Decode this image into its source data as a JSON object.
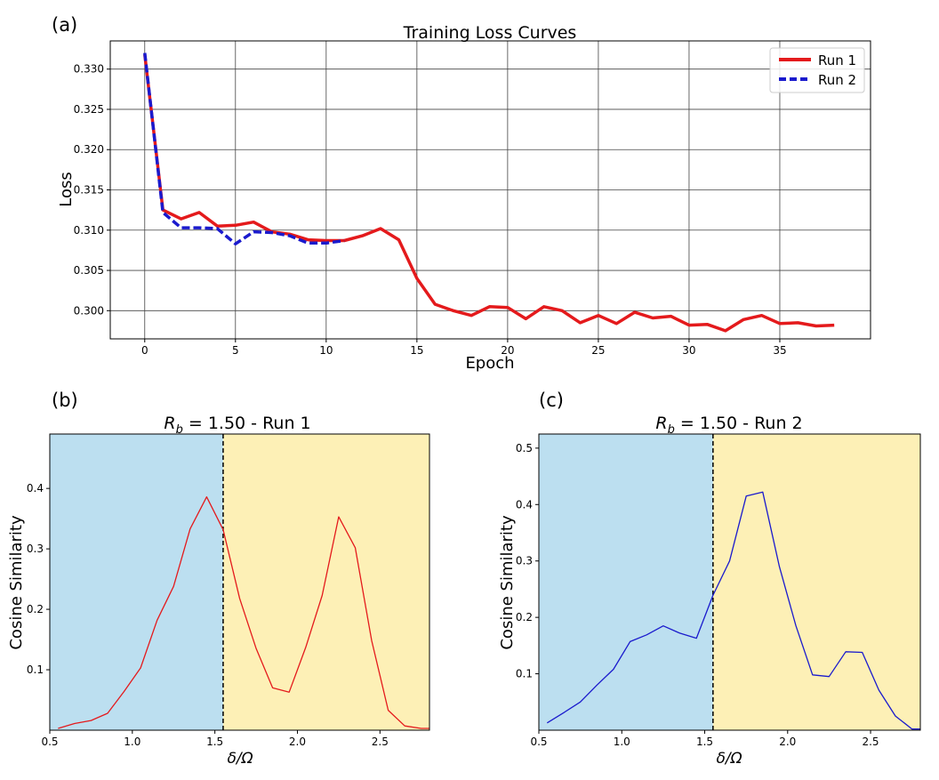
{
  "panel_labels": [
    "(a)",
    "(b)",
    "(c)"
  ],
  "chart_data": [
    {
      "type": "line",
      "title": "Training Loss Curves",
      "xlabel": "Epoch",
      "ylabel": "Loss",
      "xlim": [
        -1.9,
        40
      ],
      "ylim": [
        0.2965,
        0.3335
      ],
      "xticks": [
        0,
        5,
        10,
        15,
        20,
        25,
        30,
        35
      ],
      "yticks": [
        0.3,
        0.305,
        0.31,
        0.315,
        0.32,
        0.325,
        0.33
      ],
      "ytick_labels": [
        "0.300",
        "0.305",
        "0.310",
        "0.315",
        "0.320",
        "0.325",
        "0.330"
      ],
      "grid": true,
      "legend": "top-right",
      "series": [
        {
          "name": "Run 1",
          "color": "#e41a1c",
          "style": "solid",
          "x": [
            0,
            1,
            2,
            3,
            4,
            5,
            6,
            7,
            8,
            9,
            10,
            11,
            12,
            13,
            14,
            15,
            16,
            17,
            18,
            19,
            20,
            21,
            22,
            23,
            24,
            25,
            26,
            27,
            28,
            29,
            30,
            31,
            32,
            33,
            34,
            35,
            36,
            37,
            38
          ],
          "y": [
            0.3318,
            0.3125,
            0.3114,
            0.3122,
            0.3105,
            0.3106,
            0.311,
            0.3098,
            0.3095,
            0.3088,
            0.3087,
            0.3087,
            0.3093,
            0.3102,
            0.3088,
            0.304,
            0.3008,
            0.3,
            0.2994,
            0.3005,
            0.3004,
            0.299,
            0.3005,
            0.3,
            0.2985,
            0.2994,
            0.2984,
            0.2998,
            0.2991,
            0.2993,
            0.2982,
            0.2983,
            0.2975,
            0.2989,
            0.2994,
            0.2984,
            0.2985,
            0.2981,
            0.2982
          ]
        },
        {
          "name": "Run 2",
          "color": "#1a1acd",
          "style": "dashed",
          "x": [
            0,
            1,
            2,
            3,
            4,
            5,
            6,
            7,
            8,
            9,
            10,
            11
          ],
          "y": [
            0.332,
            0.3122,
            0.3103,
            0.3103,
            0.3102,
            0.3083,
            0.3098,
            0.3097,
            0.3093,
            0.3084,
            0.3084,
            0.3087
          ]
        }
      ]
    },
    {
      "type": "line",
      "title_main": "R",
      "title_sub": "b",
      "title_rest": " = 1.50 - Run 1",
      "xlabel": "δ/Ω",
      "ylabel": "Cosine Similarity",
      "xlim": [
        0.5,
        2.8
      ],
      "ylim": [
        0.0,
        0.49
      ],
      "xticks": [
        0.5,
        1.0,
        1.5,
        2.0,
        2.5
      ],
      "xtick_labels": [
        "0.5",
        "1.0",
        "1.5",
        "2.0",
        "2.5"
      ],
      "yticks": [
        0.1,
        0.2,
        0.3,
        0.4
      ],
      "ytick_labels": [
        "0.1",
        "0.2",
        "0.3",
        "0.4"
      ],
      "threshold_x": 1.55,
      "regions": [
        {
          "from": 0.5,
          "to": 1.55,
          "color": "#bcdff0"
        },
        {
          "from": 1.55,
          "to": 2.8,
          "color": "#fdf0b6"
        }
      ],
      "series": [
        {
          "color": "#e41a1c",
          "x": [
            0.55,
            0.65,
            0.75,
            0.85,
            0.95,
            1.05,
            1.15,
            1.25,
            1.35,
            1.45,
            1.55,
            1.65,
            1.75,
            1.85,
            1.95,
            2.05,
            2.15,
            2.25,
            2.35,
            2.45,
            2.55,
            2.65,
            2.75,
            2.8
          ],
          "y": [
            0.003,
            0.011,
            0.016,
            0.028,
            0.064,
            0.103,
            0.182,
            0.238,
            0.333,
            0.386,
            0.332,
            0.218,
            0.135,
            0.07,
            0.063,
            0.137,
            0.223,
            0.353,
            0.302,
            0.148,
            0.033,
            0.007,
            0.003,
            0.003
          ]
        }
      ]
    },
    {
      "type": "line",
      "title_main": "R",
      "title_sub": "b",
      "title_rest": " = 1.50 - Run 2",
      "xlabel": "δ/Ω",
      "ylabel": "Cosine Similarity",
      "xlim": [
        0.5,
        2.8
      ],
      "ylim": [
        0.0,
        0.525
      ],
      "xticks": [
        0.5,
        1.0,
        1.5,
        2.0,
        2.5
      ],
      "xtick_labels": [
        "0.5",
        "1.0",
        "1.5",
        "2.0",
        "2.5"
      ],
      "yticks": [
        0.1,
        0.2,
        0.3,
        0.4,
        0.5
      ],
      "ytick_labels": [
        "0.1",
        "0.2",
        "0.3",
        "0.4",
        "0.5"
      ],
      "threshold_x": 1.55,
      "regions": [
        {
          "from": 0.5,
          "to": 1.55,
          "color": "#bcdff0"
        },
        {
          "from": 1.55,
          "to": 2.8,
          "color": "#fdf0b6"
        }
      ],
      "series": [
        {
          "color": "#1a1acd",
          "x": [
            0.55,
            0.65,
            0.75,
            0.85,
            0.95,
            1.05,
            1.15,
            1.25,
            1.35,
            1.45,
            1.55,
            1.65,
            1.75,
            1.85,
            1.95,
            2.05,
            2.15,
            2.25,
            2.35,
            2.45,
            2.55,
            2.65,
            2.75,
            2.8
          ],
          "y": [
            0.013,
            0.031,
            0.05,
            0.08,
            0.108,
            0.157,
            0.169,
            0.185,
            0.172,
            0.163,
            0.239,
            0.3,
            0.415,
            0.422,
            0.29,
            0.185,
            0.098,
            0.095,
            0.139,
            0.138,
            0.071,
            0.025,
            0.002,
            0.002
          ]
        }
      ]
    }
  ]
}
